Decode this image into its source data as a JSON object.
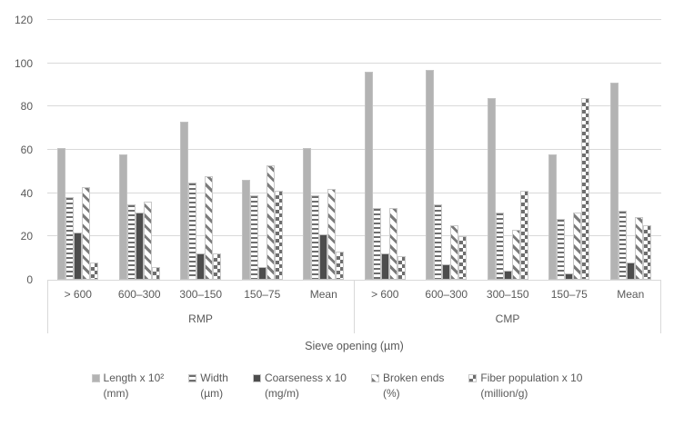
{
  "chart_data": {
    "type": "bar",
    "title": "",
    "xlabel": "Sieve opening (µm)",
    "ylabel": "",
    "ylim": [
      0,
      120
    ],
    "yticks": [
      0,
      20,
      40,
      60,
      80,
      100,
      120
    ],
    "grid": true,
    "legend_position": "bottom",
    "group_labels": [
      "RMP",
      "CMP"
    ],
    "categories": [
      "> 600",
      "600–300",
      "300–150",
      "150–75",
      "Mean",
      "> 600",
      "600–300",
      "300–150",
      "150–75",
      "Mean"
    ],
    "series": [
      {
        "name": "Length x 10²",
        "unit": "(mm)",
        "pattern": "solid-light",
        "values": [
          61,
          58,
          73,
          46,
          61,
          96,
          97,
          84,
          58,
          91
        ]
      },
      {
        "name": "Width",
        "unit": "(µm)",
        "pattern": "h-stripes",
        "values": [
          38,
          35,
          45,
          39,
          39,
          33,
          35,
          31,
          28,
          32
        ]
      },
      {
        "name": "Coarseness x 10",
        "unit": "(mg/m)",
        "pattern": "solid-dark",
        "values": [
          22,
          31,
          12,
          6,
          21,
          12,
          7,
          4,
          3,
          8
        ]
      },
      {
        "name": "Broken ends",
        "unit": "(%)",
        "pattern": "diag-stripes",
        "values": [
          43,
          36,
          48,
          53,
          42,
          33,
          25,
          23,
          31,
          29
        ]
      },
      {
        "name": "Fiber population x 10",
        "unit": "(million/g)",
        "pattern": "checker",
        "values": [
          8,
          6,
          12,
          41,
          13,
          11,
          20,
          41,
          84,
          25
        ]
      }
    ],
    "colors": {
      "solid_light": "#b3b3b3",
      "solid_dark": "#4d4d4d",
      "pattern_dark": "#6e6e6e",
      "gridline": "#d9d9d9",
      "text": "#595959"
    }
  }
}
